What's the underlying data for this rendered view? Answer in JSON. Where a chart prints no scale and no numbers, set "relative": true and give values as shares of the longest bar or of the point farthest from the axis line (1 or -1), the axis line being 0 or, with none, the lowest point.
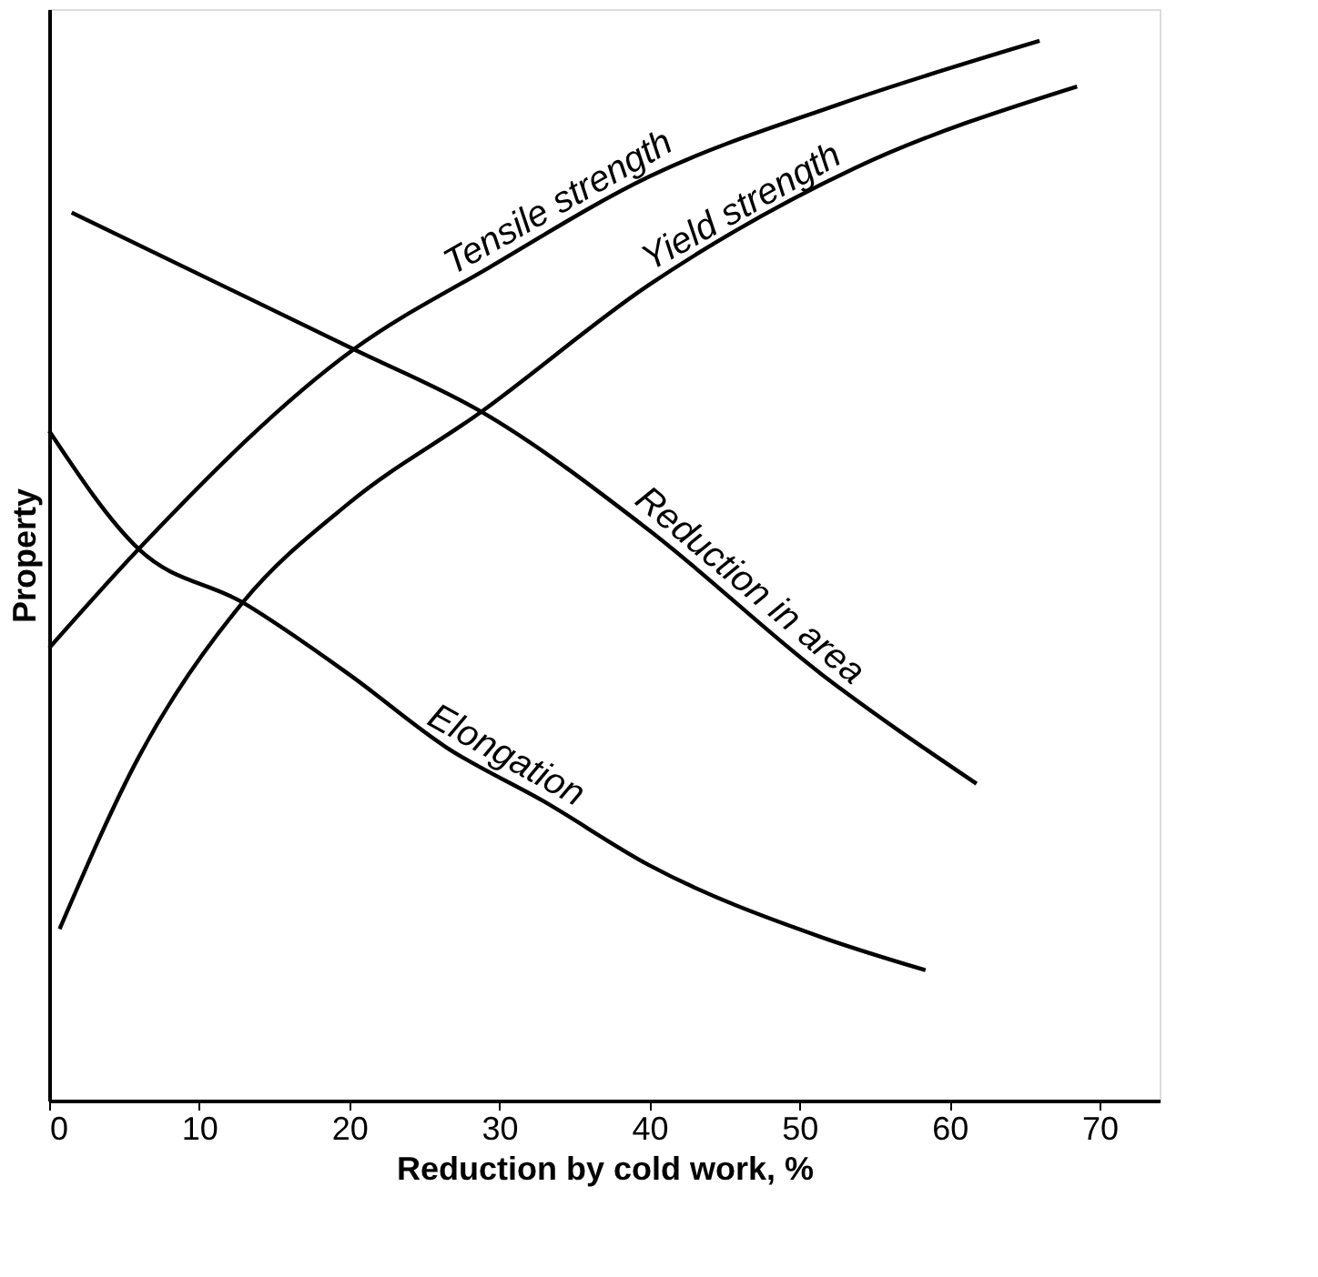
{
  "chart_data": {
    "type": "line",
    "relative": true,
    "xlabel": "Reduction by cold work, %",
    "ylabel": "Property",
    "xlim": [
      0,
      74
    ],
    "xticks": [
      0,
      10,
      20,
      30,
      40,
      50,
      60,
      70
    ],
    "grid": false,
    "marker": "none",
    "line_style": "solid",
    "series": [
      {
        "name": "Tensile strength",
        "color": "#000000",
        "x": [
          0,
          6,
          20.3,
          29.3,
          40,
          52.6,
          66
        ],
        "values": [
          0.427,
          0.521,
          0.709,
          0.786,
          0.872,
          0.94,
          1.0
        ]
      },
      {
        "name": "Yield strength",
        "color": "#000000",
        "x": [
          0.7,
          6,
          12.9,
          20,
          28.8,
          40,
          53.7,
          68.5
        ],
        "values": [
          0.162,
          0.325,
          0.47,
          0.564,
          0.65,
          0.77,
          0.88,
          0.957
        ]
      },
      {
        "name": "Reduction in area",
        "color": "#000000",
        "x": [
          1.5,
          20.3,
          28.8,
          40,
          51.5,
          61.8
        ],
        "values": [
          0.838,
          0.709,
          0.65,
          0.538,
          0.402,
          0.299
        ]
      },
      {
        "name": "Elongation",
        "color": "#000000",
        "x": [
          0,
          6,
          12.9,
          20,
          26.5,
          33,
          40,
          51.5,
          58.4
        ],
        "values": [
          0.632,
          0.52,
          0.47,
          0.402,
          0.333,
          0.282,
          0.222,
          0.154,
          0.123
        ]
      }
    ]
  }
}
